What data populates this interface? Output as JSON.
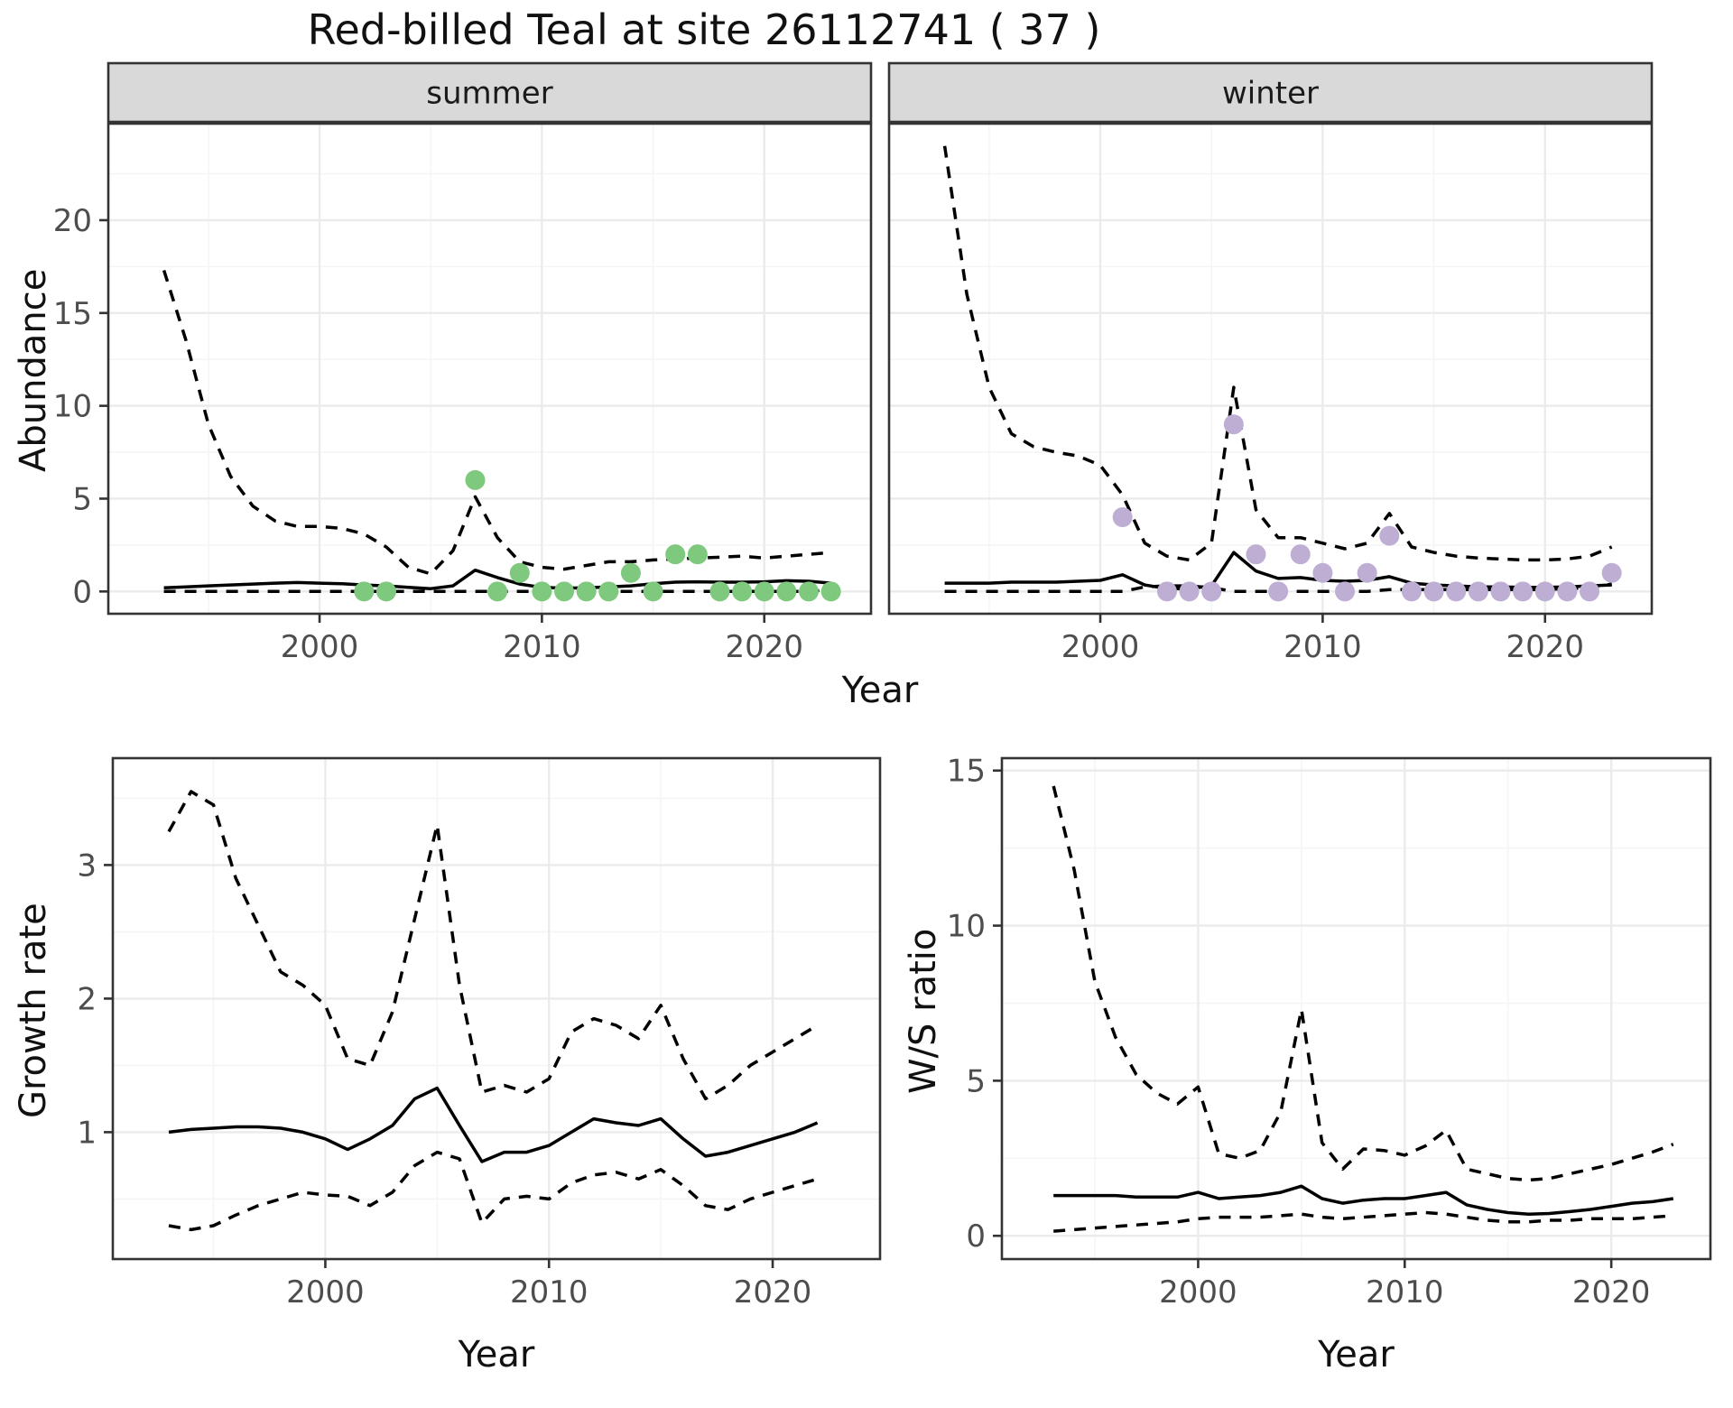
{
  "title": "Red-billed Teal at site 26112741 ( 37 )",
  "axes": {
    "x": "Year",
    "abundance": "Abundance",
    "growth_rate": "Growth rate",
    "ws_ratio": "W/S ratio"
  },
  "colors": {
    "summer_points": "#7FC97F",
    "winter_points": "#BEAED4",
    "line": "#000000",
    "strip_bg": "#D9D9D9",
    "grid_major": "#EBEBEB",
    "grid_minor": "#F5F5F5",
    "tick_text": "#4D4D4D",
    "panel_border": "#333333"
  },
  "chart_data": [
    {
      "id": "abundance_summer",
      "type": "line",
      "facet_label": "summer",
      "xlabel": "Year",
      "ylabel": "Abundance",
      "xlim": [
        1990.5,
        2024.8
      ],
      "ylim": [
        -1.2,
        25.2
      ],
      "x_ticks": [
        2000,
        2010,
        2020
      ],
      "y_ticks": [
        0,
        5,
        10,
        15,
        20
      ],
      "years": [
        1993,
        1994,
        1995,
        1996,
        1997,
        1998,
        1999,
        2000,
        2001,
        2002,
        2003,
        2004,
        2005,
        2006,
        2007,
        2008,
        2009,
        2010,
        2011,
        2012,
        2013,
        2014,
        2015,
        2016,
        2017,
        2018,
        2019,
        2020,
        2021,
        2022,
        2023
      ],
      "series": [
        {
          "name": "estimate",
          "style": "solid",
          "values": [
            0.2,
            0.25,
            0.3,
            0.35,
            0.4,
            0.45,
            0.48,
            0.45,
            0.42,
            0.35,
            0.3,
            0.22,
            0.15,
            0.3,
            1.15,
            0.75,
            0.4,
            0.22,
            0.18,
            0.2,
            0.25,
            0.3,
            0.42,
            0.5,
            0.52,
            0.5,
            0.5,
            0.52,
            0.58,
            0.55,
            0.45
          ]
        },
        {
          "name": "upper_ci",
          "style": "dashed",
          "values": [
            17.3,
            13.5,
            9.0,
            6.2,
            4.6,
            3.8,
            3.5,
            3.5,
            3.4,
            3.1,
            2.4,
            1.3,
            0.95,
            2.2,
            5.1,
            2.9,
            1.6,
            1.3,
            1.2,
            1.4,
            1.6,
            1.6,
            1.7,
            1.75,
            1.8,
            1.85,
            1.9,
            1.8,
            1.9,
            2.0,
            2.1
          ]
        },
        {
          "name": "lower_ci",
          "style": "dashed",
          "values": [
            0,
            0,
            0,
            0,
            0,
            0,
            0,
            0,
            0,
            0,
            0,
            0,
            0,
            0,
            0,
            0,
            0,
            0,
            0,
            0,
            0,
            0,
            0,
            0,
            0,
            0,
            0,
            0,
            0,
            0,
            0.1
          ]
        }
      ],
      "points": {
        "name": "observed_counts",
        "color": "#7FC97F",
        "data": [
          [
            2002,
            0
          ],
          [
            2003,
            0
          ],
          [
            2007,
            6
          ],
          [
            2008,
            0
          ],
          [
            2009,
            1
          ],
          [
            2010,
            0
          ],
          [
            2011,
            0
          ],
          [
            2012,
            0
          ],
          [
            2013,
            0
          ],
          [
            2014,
            1
          ],
          [
            2015,
            0
          ],
          [
            2016,
            2
          ],
          [
            2017,
            2
          ],
          [
            2018,
            0
          ],
          [
            2019,
            0
          ],
          [
            2020,
            0
          ],
          [
            2021,
            0
          ],
          [
            2022,
            0
          ],
          [
            2023,
            0
          ]
        ]
      }
    },
    {
      "id": "abundance_winter",
      "type": "line",
      "facet_label": "winter",
      "xlabel": "Year",
      "ylabel": "Abundance",
      "xlim": [
        1990.5,
        2024.8
      ],
      "ylim": [
        -1.2,
        25.2
      ],
      "x_ticks": [
        2000,
        2010,
        2020
      ],
      "y_ticks": [
        0,
        5,
        10,
        15,
        20
      ],
      "years": [
        1993,
        1994,
        1995,
        1996,
        1997,
        1998,
        1999,
        2000,
        2001,
        2002,
        2003,
        2004,
        2005,
        2006,
        2007,
        2008,
        2009,
        2010,
        2011,
        2012,
        2013,
        2014,
        2015,
        2016,
        2017,
        2018,
        2019,
        2020,
        2021,
        2022,
        2023
      ],
      "series": [
        {
          "name": "estimate",
          "style": "solid",
          "values": [
            0.45,
            0.45,
            0.45,
            0.5,
            0.5,
            0.5,
            0.55,
            0.6,
            0.9,
            0.35,
            0.15,
            0.15,
            0.3,
            2.1,
            1.1,
            0.7,
            0.75,
            0.6,
            0.55,
            0.6,
            0.8,
            0.45,
            0.35,
            0.3,
            0.25,
            0.25,
            0.22,
            0.22,
            0.25,
            0.3,
            0.35
          ]
        },
        {
          "name": "upper_ci",
          "style": "dashed",
          "values": [
            24.0,
            16.0,
            11.0,
            8.5,
            7.8,
            7.5,
            7.3,
            6.8,
            5.2,
            2.6,
            1.9,
            1.7,
            2.6,
            11.0,
            4.4,
            2.9,
            2.9,
            2.6,
            2.3,
            2.6,
            4.2,
            2.4,
            2.1,
            1.9,
            1.8,
            1.75,
            1.7,
            1.7,
            1.75,
            1.9,
            2.4
          ]
        },
        {
          "name": "lower_ci",
          "style": "dashed",
          "values": [
            0,
            0,
            0,
            0,
            0,
            0,
            0,
            0,
            0,
            0.25,
            0.3,
            0.3,
            0.2,
            0,
            0,
            0,
            0,
            0,
            0,
            0,
            0.1,
            0.1,
            0.1,
            0.1,
            0.1,
            0.1,
            0.1,
            0.1,
            0.15,
            0.2,
            0.4
          ]
        }
      ],
      "points": {
        "name": "observed_counts",
        "color": "#BEAED4",
        "data": [
          [
            2001,
            4
          ],
          [
            2003,
            0
          ],
          [
            2004,
            0
          ],
          [
            2005,
            0
          ],
          [
            2006,
            9
          ],
          [
            2007,
            2
          ],
          [
            2008,
            0
          ],
          [
            2009,
            2
          ],
          [
            2010,
            1
          ],
          [
            2011,
            0
          ],
          [
            2012,
            1
          ],
          [
            2013,
            3
          ],
          [
            2014,
            0
          ],
          [
            2015,
            0
          ],
          [
            2016,
            0
          ],
          [
            2017,
            0
          ],
          [
            2018,
            0
          ],
          [
            2019,
            0
          ],
          [
            2020,
            0
          ],
          [
            2021,
            0
          ],
          [
            2022,
            0
          ],
          [
            2023,
            1
          ]
        ]
      }
    },
    {
      "id": "growth_rate",
      "type": "line",
      "facet_label": null,
      "xlabel": "Year",
      "ylabel": "Growth rate",
      "xlim": [
        1990.5,
        2024.8
      ],
      "ylim": [
        0.05,
        3.8
      ],
      "x_ticks": [
        2000,
        2010,
        2020
      ],
      "y_ticks": [
        1,
        2,
        3
      ],
      "years": [
        1993,
        1994,
        1995,
        1996,
        1997,
        1998,
        1999,
        2000,
        2001,
        2002,
        2003,
        2004,
        2005,
        2006,
        2007,
        2008,
        2009,
        2010,
        2011,
        2012,
        2013,
        2014,
        2015,
        2016,
        2017,
        2018,
        2019,
        2020,
        2021,
        2022
      ],
      "series": [
        {
          "name": "estimate",
          "style": "solid",
          "values": [
            1.0,
            1.02,
            1.03,
            1.04,
            1.04,
            1.03,
            1.0,
            0.95,
            0.87,
            0.95,
            1.05,
            1.25,
            1.33,
            1.05,
            0.78,
            0.85,
            0.85,
            0.9,
            1.0,
            1.1,
            1.07,
            1.05,
            1.1,
            0.95,
            0.82,
            0.85,
            0.9,
            0.95,
            1.0,
            1.07
          ]
        },
        {
          "name": "upper_ci",
          "style": "dashed",
          "values": [
            3.25,
            3.55,
            3.45,
            2.9,
            2.55,
            2.2,
            2.1,
            1.95,
            1.55,
            1.5,
            1.9,
            2.6,
            3.3,
            2.1,
            1.3,
            1.35,
            1.3,
            1.4,
            1.75,
            1.85,
            1.8,
            1.7,
            1.95,
            1.55,
            1.25,
            1.35,
            1.5,
            1.6,
            1.7,
            1.8
          ]
        },
        {
          "name": "lower_ci",
          "style": "dashed",
          "values": [
            0.3,
            0.27,
            0.3,
            0.38,
            0.45,
            0.5,
            0.55,
            0.53,
            0.52,
            0.45,
            0.55,
            0.75,
            0.85,
            0.8,
            0.32,
            0.5,
            0.52,
            0.5,
            0.62,
            0.68,
            0.7,
            0.65,
            0.72,
            0.6,
            0.45,
            0.42,
            0.5,
            0.55,
            0.6,
            0.65
          ]
        }
      ],
      "points": null
    },
    {
      "id": "ws_ratio",
      "type": "line",
      "facet_label": null,
      "xlabel": "Year",
      "ylabel": "W/S ratio",
      "xlim": [
        1990.5,
        2024.8
      ],
      "ylim": [
        -0.75,
        15.4
      ],
      "x_ticks": [
        2000,
        2010,
        2020
      ],
      "y_ticks": [
        0,
        5,
        10,
        15
      ],
      "years": [
        1993,
        1994,
        1995,
        1996,
        1997,
        1998,
        1999,
        2000,
        2001,
        2002,
        2003,
        2004,
        2005,
        2006,
        2007,
        2008,
        2009,
        2010,
        2011,
        2012,
        2013,
        2014,
        2015,
        2016,
        2017,
        2018,
        2019,
        2020,
        2021,
        2022,
        2023
      ],
      "series": [
        {
          "name": "estimate",
          "style": "solid",
          "values": [
            1.3,
            1.3,
            1.3,
            1.3,
            1.25,
            1.25,
            1.25,
            1.4,
            1.2,
            1.25,
            1.3,
            1.4,
            1.6,
            1.2,
            1.05,
            1.15,
            1.2,
            1.2,
            1.3,
            1.4,
            1.0,
            0.85,
            0.75,
            0.7,
            0.72,
            0.78,
            0.85,
            0.95,
            1.05,
            1.1,
            1.2
          ]
        },
        {
          "name": "upper_ci",
          "style": "dashed",
          "values": [
            14.5,
            11.8,
            8.2,
            6.4,
            5.2,
            4.6,
            4.25,
            4.8,
            2.65,
            2.5,
            2.75,
            4.0,
            7.3,
            3.0,
            2.15,
            2.8,
            2.75,
            2.6,
            2.9,
            3.4,
            2.15,
            2.0,
            1.85,
            1.8,
            1.85,
            2.0,
            2.15,
            2.3,
            2.5,
            2.7,
            2.95
          ]
        },
        {
          "name": "lower_ci",
          "style": "dashed",
          "values": [
            0.15,
            0.2,
            0.25,
            0.3,
            0.35,
            0.4,
            0.45,
            0.55,
            0.6,
            0.6,
            0.6,
            0.65,
            0.7,
            0.6,
            0.55,
            0.6,
            0.65,
            0.7,
            0.75,
            0.7,
            0.6,
            0.5,
            0.45,
            0.45,
            0.5,
            0.5,
            0.55,
            0.55,
            0.55,
            0.6,
            0.65
          ]
        }
      ],
      "points": null
    }
  ]
}
